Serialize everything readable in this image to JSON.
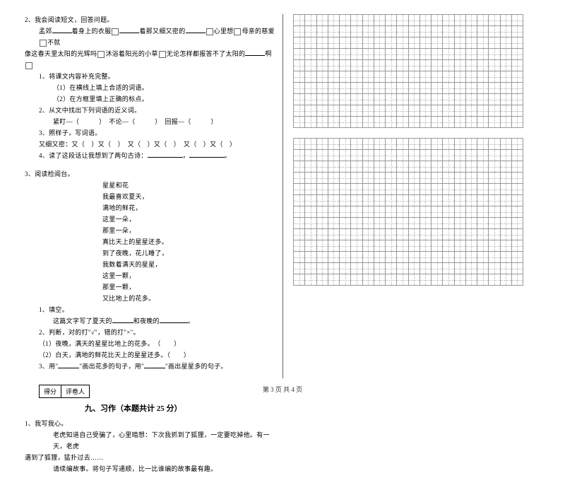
{
  "q2": {
    "title": "2、我会阅读短文，回答问题。",
    "p1a": "孟郊",
    "p1b": "着身上的衣服",
    "p1c": "着那又细又密的",
    "p1d": "心里想",
    "p1e": "母亲的慈爱",
    "p1f": "不就",
    "p2a": "像这春天里太阳的光辉吗",
    "p2b": "沐浴着阳光的小草",
    "p2c": "无论怎样都报答不了太阳的",
    "p2d": "啊",
    "s1": "1、将课文内容补充完整。",
    "s1a": "（1）在横线上填上合适的词语。",
    "s1b": "（2）在方框里填上正确的标点。",
    "s2": "2、从文中找出下列词语的近义词。",
    "s2a": "紧盯—（　　　）　不论—（　　　）　回报—（　　　）",
    "s3": "3、照样子，写词语。",
    "s3a": "又细又密：又（　）又（　）　又（　）又（　）　又（　）又（　）",
    "s4a": "4、读了这段话让我想到了两句古诗：",
    "s4b": "，",
    "s4c": "。"
  },
  "q3": {
    "title": "3、阅读检阅台。",
    "l1": "星星和花",
    "l2": "我最喜欢夏天，",
    "l3": "满地的鲜花，",
    "l4": "这里一朵，",
    "l5": "那里一朵，",
    "l6": "真比天上的星星还多。",
    "l7": "到了夜晚，花儿睡了，",
    "l8": "我数着满天的星星，",
    "l9": "这里一颗，",
    "l10": "那里一颗，",
    "l11": "又比地上的花多。",
    "s1": "1、填空。",
    "s1a_a": "这篇文字写了夏天的",
    "s1a_b": "和夜晚的",
    "s1a_c": "。",
    "s2": "2、判断，对的打\"√\"，错的打\"×\"。",
    "s2a": "（1）夜晚，满天的星星比地上的花多。　（　　）",
    "s2b": "（2）白天，满地的鲜花比天上的星星还多。（　　）",
    "s3a": "3、用\"",
    "s3b": "\"画出花多的句子，用\"",
    "s3c": "\"画出星星多的句子。"
  },
  "score": {
    "a": "得分",
    "b": "评卷人"
  },
  "section9": {
    "title": "九、习作（本题共计 25 分）",
    "q1": "1、我写我心。",
    "p1": "老虎知道自己受骗了，心里暗想：下次我抓到了狐狸，一定要吃掉他。有一天，老虎",
    "p2": "遇到了狐狸，猛扑过去……",
    "p3": "请续编故事。将句子写通顺，比一比谁编的故事最有趣。"
  },
  "footer": "第 3 页 共 4 页",
  "grid": {
    "cols": 20,
    "rows1": 10,
    "rows2": 13
  },
  "style": {
    "font_size": 9,
    "text_color": "#000000",
    "bg": "#ffffff",
    "grid_border": "#999999",
    "grid_dash": "#cccccc"
  }
}
